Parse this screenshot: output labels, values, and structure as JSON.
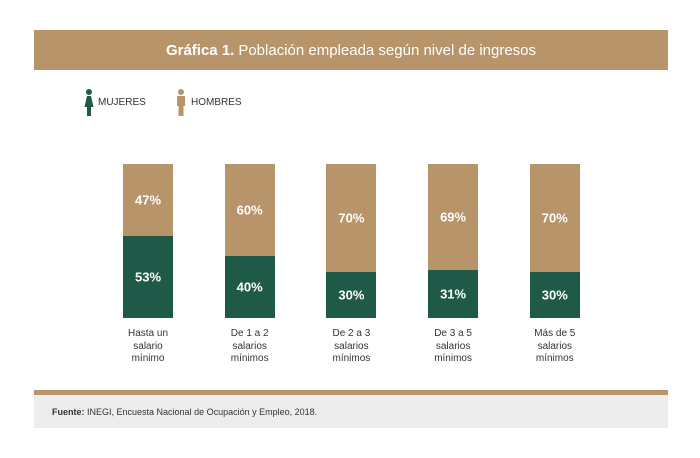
{
  "chart_data": {
    "type": "stacked_bar_100",
    "title": "Gráfica 1.",
    "subtitle": "Población empleada según nivel de ingresos",
    "categories": [
      "Hasta un salario mínimo",
      "De 1 a 2 salarios mínimos",
      "De 2 a 3 salarios mínimos",
      "De 3 a 5 salarios mínimos",
      "Más de 5 salarios mínimos"
    ],
    "series": [
      {
        "name": "MUJERES",
        "color": "#1f5a48",
        "values": [
          53,
          40,
          30,
          31,
          30
        ],
        "value_labels": [
          "53%",
          "40%",
          "30%",
          "31%",
          "30%"
        ]
      },
      {
        "name": "HOMBRES",
        "color": "#b8946a",
        "values": [
          47,
          60,
          70,
          69,
          70
        ],
        "value_labels": [
          "47%",
          "60%",
          "70%",
          "69%",
          "70%"
        ]
      }
    ],
    "ylim": [
      0,
      100
    ],
    "source_label": "Fuente:",
    "source": "INEGI, Encuesta Nacional de Ocupación y Empleo, 2018."
  }
}
